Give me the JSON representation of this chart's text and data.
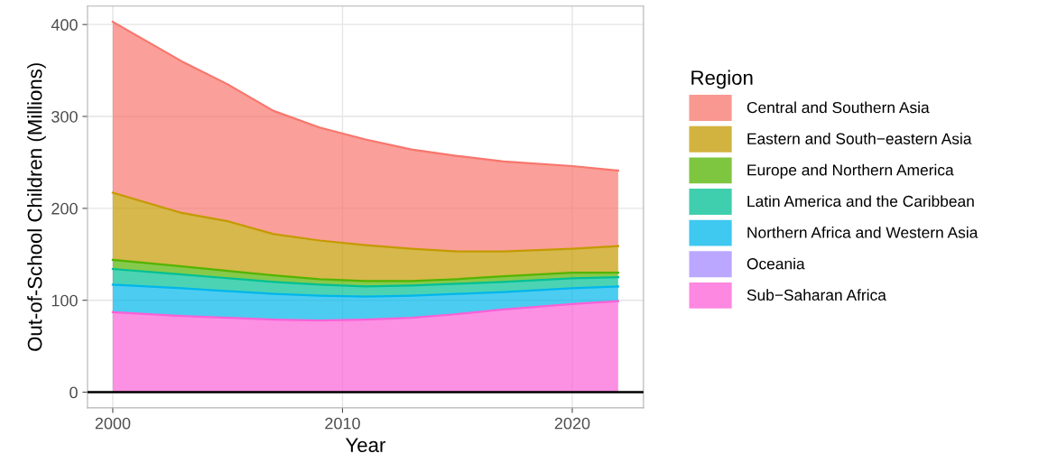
{
  "chart_data": {
    "type": "area",
    "stacked": true,
    "xlabel": "Year",
    "ylabel": "Out-of-School Children (Millions)",
    "legend_title": "Region",
    "legend": "right",
    "grid": true,
    "x": [
      2000,
      2003,
      2005,
      2007,
      2009,
      2011,
      2013,
      2015,
      2017,
      2020,
      2022
    ],
    "xlim": [
      1998.9,
      2023.1
    ],
    "xticks": [
      2000,
      2010,
      2020
    ],
    "ylim": [
      -17,
      420
    ],
    "yticks": [
      0,
      100,
      200,
      300,
      400
    ],
    "ref_lines": [
      {
        "axis": "y",
        "value": 0,
        "color": "#000000"
      }
    ],
    "series": [
      {
        "name": "Sub−Saharan Africa",
        "color": "#FB61D7",
        "values": [
          87,
          83,
          81,
          79,
          78,
          79,
          81,
          85,
          90,
          96,
          99
        ]
      },
      {
        "name": "Oceania",
        "color": "#A58AFF",
        "values": [
          null,
          null,
          null,
          null,
          null,
          null,
          null,
          null,
          null,
          null,
          null
        ]
      },
      {
        "name": "Northern Africa and Western Asia",
        "color": "#00B6EB",
        "values": [
          30,
          30,
          29,
          28,
          27,
          25,
          24,
          22,
          19,
          17,
          16
        ]
      },
      {
        "name": "Latin America and the Caribbean",
        "color": "#00C094",
        "values": [
          17,
          15,
          14,
          13,
          12,
          11,
          11,
          11,
          11,
          11,
          10
        ]
      },
      {
        "name": "Europe and Northern America",
        "color": "#53B400",
        "values": [
          10,
          9,
          8,
          7,
          6,
          6,
          5,
          5,
          6,
          6,
          5
        ]
      },
      {
        "name": "Eastern and South−eastern Asia",
        "color": "#C49A00",
        "values": [
          73,
          58,
          54,
          45,
          42,
          39,
          35,
          30,
          27,
          26,
          29
        ]
      },
      {
        "name": "Central and Southern Asia",
        "color": "#F8766D",
        "values": [
          186,
          165,
          149,
          134,
          123,
          115,
          108,
          104,
          98,
          90,
          82
        ]
      }
    ]
  }
}
